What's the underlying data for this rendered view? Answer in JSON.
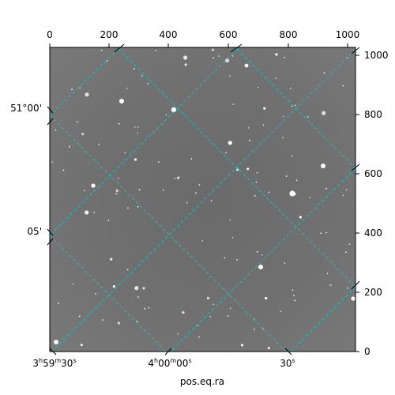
{
  "figure": {
    "xlabel": "pos.eq.ra",
    "top_ticks": [
      "0",
      "200",
      "400",
      "600",
      "800",
      "1000"
    ],
    "right_ticks": [
      "0",
      "200",
      "400",
      "600",
      "800",
      "1000"
    ],
    "ra_ticks": [
      {
        "h": "3",
        "hs": "h",
        "m": "59",
        "ms": "m",
        "s": "30",
        "ss": "s"
      },
      {
        "h": "4",
        "hs": "h",
        "m": "00",
        "ms": "m",
        "s": "00",
        "ss": "s"
      },
      {
        "h": "",
        "hs": "",
        "m": "",
        "ms": "",
        "s": "30",
        "ss": "s"
      }
    ],
    "dec_ticks": [
      "51°00'",
      "05'"
    ],
    "colors": {
      "grid": "#00cccc",
      "background": "#6e6e6e",
      "frame": "#000000"
    }
  }
}
